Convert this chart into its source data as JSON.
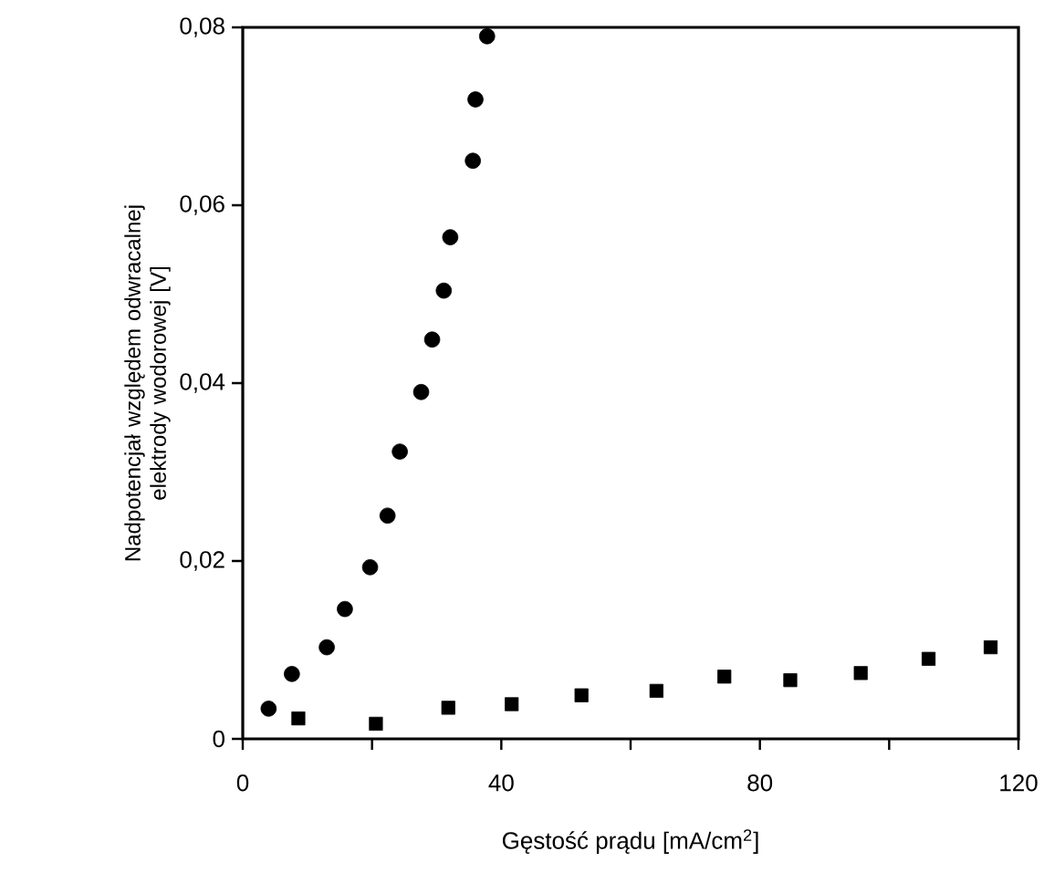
{
  "chart_data": {
    "type": "scatter",
    "xlabel": "Gęstość prądu [mA/cm$^{2}$]",
    "ylabel": "Nadpotencjał względem odwracalnej elektrody wodorowej [V]",
    "xlim": [
      0,
      120
    ],
    "ylim": [
      0,
      0.08
    ],
    "xticks": [
      0,
      {
        "value": 20,
        "label": null
      },
      40,
      {
        "value": 60,
        "label": null
      },
      80,
      {
        "value": 100,
        "label": null
      },
      120
    ],
    "yticks": [
      {
        "value": 0,
        "label": "0"
      },
      {
        "value": 0.02,
        "label": "0,02"
      },
      {
        "value": 0.04,
        "label": "0,04"
      },
      {
        "value": 0.06,
        "label": "0,06"
      },
      {
        "value": 0.08,
        "label": "0,08"
      }
    ],
    "grid": false,
    "series": [
      {
        "color": "#000000",
        "marker": "circle",
        "x": [
          4.0,
          7.6,
          13.0,
          15.8,
          19.7,
          22.4,
          24.3,
          27.6,
          29.3,
          31.1,
          32.1,
          35.6,
          36.0,
          37.8
        ],
        "values": [
          0.0034,
          0.0073,
          0.0103,
          0.0146,
          0.0193,
          0.0251,
          0.0323,
          0.039,
          0.0449,
          0.0504,
          0.0564,
          0.065,
          0.0719,
          0.079
        ]
      },
      {
        "color": "#000000",
        "marker": "square",
        "x": [
          8.6,
          20.6,
          31.8,
          41.6,
          52.4,
          64.0,
          74.5,
          84.7,
          95.6,
          106.1,
          115.7
        ],
        "values": [
          0.0023,
          0.0017,
          0.0035,
          0.0039,
          0.0049,
          0.0054,
          0.007,
          0.0066,
          0.0074,
          0.009,
          0.0103
        ]
      }
    ]
  }
}
